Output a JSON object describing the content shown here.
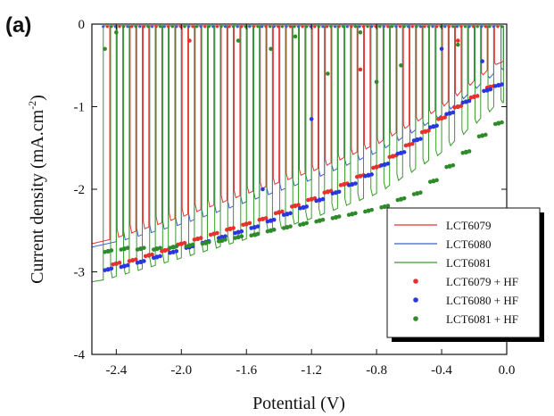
{
  "panel_label": "(a)",
  "chart_data": {
    "type": "line",
    "xlabel": "Potential (V)",
    "ylabel": "Current density (mA.cm",
    "ylabel_sup": "-2",
    "ylabel_close": ")",
    "xlim": [
      -2.55,
      0.0
    ],
    "ylim": [
      -4,
      0
    ],
    "xticks": [
      -2.4,
      -2.0,
      -1.6,
      -1.2,
      -0.8,
      -0.4,
      0.0
    ],
    "xtick_labels": [
      "-2.4",
      "-2.0",
      "-1.6",
      "-1.2",
      "-0.8",
      "-0.4",
      "0.0"
    ],
    "yticks": [
      0,
      -1,
      -2,
      -3,
      -4
    ],
    "ytick_labels": [
      "0",
      "-1",
      "-2",
      "-3",
      "-4"
    ],
    "grid": false,
    "legend_position": "bottom-right",
    "series": [
      {
        "name": "LCT6079",
        "style": "line",
        "color": "#e8312f",
        "envelope": [
          [
            -2.52,
            -2.66
          ],
          [
            -2.0,
            -2.33
          ],
          [
            -1.6,
            -2.05
          ],
          [
            -1.2,
            -1.78
          ],
          [
            -0.8,
            -1.45
          ],
          [
            -0.4,
            -1.0
          ],
          [
            -0.05,
            -0.45
          ]
        ],
        "chop_x": [
          -2.44,
          -2.36,
          -2.28,
          -2.2,
          -2.12,
          -2.04,
          -1.96,
          -1.88,
          -1.8,
          -1.72,
          -1.64,
          -1.56,
          -1.48,
          -1.4,
          -1.32,
          -1.24,
          -1.16,
          -1.08,
          -1.0,
          -0.92,
          -0.84,
          -0.76,
          -0.68,
          -0.6,
          -0.52,
          -0.44,
          -0.36,
          -0.28,
          -0.2,
          -0.12
        ]
      },
      {
        "name": "LCT6080",
        "style": "line",
        "color": "#3a5fd4",
        "envelope": [
          [
            -2.52,
            -2.7
          ],
          [
            -2.0,
            -2.42
          ],
          [
            -1.6,
            -2.15
          ],
          [
            -1.2,
            -1.88
          ],
          [
            -0.8,
            -1.55
          ],
          [
            -0.4,
            -1.1
          ],
          [
            -0.05,
            -0.55
          ]
        ],
        "chop_x": [
          -2.4,
          -2.32,
          -2.24,
          -2.16,
          -2.08,
          -2.0,
          -1.92,
          -1.84,
          -1.76,
          -1.68,
          -1.6,
          -1.52,
          -1.44,
          -1.36,
          -1.28,
          -1.2,
          -1.12,
          -1.04,
          -0.96,
          -0.88,
          -0.8,
          -0.72,
          -0.64,
          -0.56,
          -0.48,
          -0.4,
          -0.32,
          -0.24,
          -0.16,
          -0.08
        ]
      },
      {
        "name": "LCT6081",
        "style": "line",
        "color": "#3a9a2c",
        "envelope": [
          [
            -2.52,
            -3.12
          ],
          [
            -2.0,
            -2.83
          ],
          [
            -1.6,
            -2.6
          ],
          [
            -1.2,
            -2.35
          ],
          [
            -0.8,
            -2.05
          ],
          [
            -0.4,
            -1.55
          ],
          [
            -0.05,
            -0.95
          ]
        ],
        "chop_x": [
          -2.48,
          -2.4,
          -2.32,
          -2.24,
          -2.16,
          -2.08,
          -2.0,
          -1.92,
          -1.84,
          -1.76,
          -1.68,
          -1.6,
          -1.52,
          -1.44,
          -1.36,
          -1.28,
          -1.2,
          -1.12,
          -1.04,
          -0.96,
          -0.88,
          -0.8,
          -0.72,
          -0.64,
          -0.56,
          -0.48,
          -0.4,
          -0.32,
          -0.24,
          -0.16,
          -0.08
        ]
      },
      {
        "name": "LCT6079 + HF",
        "style": "scatter",
        "color": "#e8312f",
        "points": [
          [
            -2.4,
            -2.9
          ],
          [
            -2.3,
            -2.86
          ],
          [
            -2.2,
            -2.8
          ],
          [
            -2.1,
            -2.74
          ],
          [
            -2.0,
            -2.66
          ],
          [
            -1.9,
            -2.6
          ],
          [
            -1.8,
            -2.54
          ],
          [
            -1.7,
            -2.48
          ],
          [
            -1.6,
            -2.42
          ],
          [
            -1.5,
            -2.36
          ],
          [
            -1.4,
            -2.28
          ],
          [
            -1.3,
            -2.2
          ],
          [
            -1.2,
            -2.12
          ],
          [
            -1.1,
            -2.03
          ],
          [
            -1.0,
            -1.94
          ],
          [
            -0.9,
            -1.84
          ],
          [
            -0.8,
            -1.73
          ],
          [
            -0.7,
            -1.6
          ],
          [
            -0.6,
            -1.46
          ],
          [
            -0.5,
            -1.3
          ],
          [
            -0.4,
            -1.14
          ],
          [
            -0.3,
            -1.0
          ],
          [
            -0.2,
            -0.88
          ],
          [
            -0.1,
            -0.76
          ]
        ],
        "spikes": [
          [
            -0.9,
            -0.55
          ],
          [
            -0.8,
            -0.7
          ],
          [
            -0.3,
            -0.2
          ],
          [
            -1.95,
            -0.2
          ]
        ]
      },
      {
        "name": "LCT6080 + HF",
        "style": "scatter",
        "color": "#2a36e0",
        "points": [
          [
            -2.45,
            -2.97
          ],
          [
            -2.35,
            -2.93
          ],
          [
            -2.25,
            -2.88
          ],
          [
            -2.15,
            -2.82
          ],
          [
            -2.05,
            -2.76
          ],
          [
            -1.95,
            -2.7
          ],
          [
            -1.85,
            -2.64
          ],
          [
            -1.75,
            -2.58
          ],
          [
            -1.65,
            -2.52
          ],
          [
            -1.55,
            -2.46
          ],
          [
            -1.45,
            -2.38
          ],
          [
            -1.35,
            -2.3
          ],
          [
            -1.25,
            -2.22
          ],
          [
            -1.15,
            -2.13
          ],
          [
            -1.05,
            -2.04
          ],
          [
            -0.95,
            -1.94
          ],
          [
            -0.85,
            -1.83
          ],
          [
            -0.75,
            -1.7
          ],
          [
            -0.65,
            -1.56
          ],
          [
            -0.55,
            -1.4
          ],
          [
            -0.45,
            -1.24
          ],
          [
            -0.35,
            -1.08
          ],
          [
            -0.25,
            -0.94
          ],
          [
            -0.12,
            -0.8
          ],
          [
            -0.05,
            -0.74
          ]
        ],
        "spikes": [
          [
            -1.5,
            -2.0
          ],
          [
            -1.2,
            -1.15
          ],
          [
            -0.4,
            -0.3
          ],
          [
            -0.15,
            -0.45
          ]
        ]
      },
      {
        "name": "LCT6081 + HF",
        "style": "scatter",
        "color": "#2e8a2a",
        "points": [
          [
            -2.45,
            -2.75
          ],
          [
            -2.35,
            -2.72
          ],
          [
            -2.25,
            -2.72
          ],
          [
            -2.15,
            -2.72
          ],
          [
            -2.05,
            -2.7
          ],
          [
            -1.95,
            -2.68
          ],
          [
            -1.85,
            -2.65
          ],
          [
            -1.75,
            -2.62
          ],
          [
            -1.65,
            -2.58
          ],
          [
            -1.55,
            -2.55
          ],
          [
            -1.45,
            -2.5
          ],
          [
            -1.35,
            -2.46
          ],
          [
            -1.25,
            -2.42
          ],
          [
            -1.15,
            -2.38
          ],
          [
            -1.05,
            -2.34
          ],
          [
            -0.95,
            -2.3
          ],
          [
            -0.85,
            -2.26
          ],
          [
            -0.75,
            -2.21
          ],
          [
            -0.65,
            -2.12
          ],
          [
            -0.55,
            -2.05
          ],
          [
            -0.45,
            -1.9
          ],
          [
            -0.35,
            -1.72
          ],
          [
            -0.25,
            -1.55
          ],
          [
            -0.15,
            -1.35
          ],
          [
            -0.05,
            -1.2
          ]
        ],
        "spikes": [
          [
            -2.47,
            -0.3
          ],
          [
            -2.4,
            -0.1
          ],
          [
            -1.65,
            -0.2
          ],
          [
            -1.45,
            -0.3
          ],
          [
            -1.3,
            -0.15
          ],
          [
            -1.1,
            -0.6
          ],
          [
            -0.8,
            -0.7
          ],
          [
            -0.65,
            -0.5
          ],
          [
            -0.3,
            -0.25
          ],
          [
            -0.9,
            -0.1
          ]
        ]
      }
    ]
  }
}
